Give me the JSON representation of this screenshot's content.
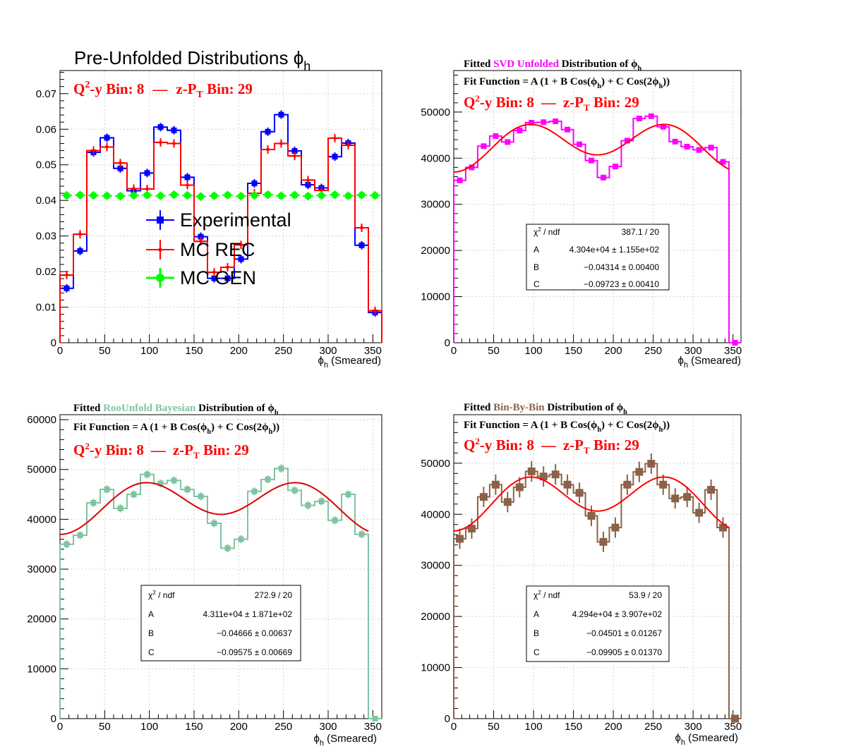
{
  "chart_data": [
    {
      "type": "line",
      "title": "Pre-Unfolded Distributions ϕh",
      "title_main": "Pre-Unfolded Distributions ",
      "title_var": "ϕ",
      "title_sub": "h",
      "bin_label": {
        "q_prefix": "Q",
        "q_sup": "2",
        "q_rest": "-y Bin: 8",
        "dash": "—",
        "z_prefix": "z-P",
        "z_sub": "T",
        "z_rest": " Bin: 29"
      },
      "xlabel": {
        "phi": "ϕ",
        "sub": "h",
        "rest": " (Smeared)"
      },
      "xlim": [
        0,
        360
      ],
      "ylim": [
        0,
        0.0765
      ],
      "xticks": [
        0,
        50,
        100,
        150,
        200,
        250,
        300,
        350
      ],
      "yticks": [
        "0",
        "0.01",
        "0.02",
        "0.03",
        "0.04",
        "0.05",
        "0.06",
        "0.07"
      ],
      "ytick_values": [
        0,
        0.01,
        0.02,
        0.03,
        0.04,
        0.05,
        0.06,
        0.07
      ],
      "bin_edges": [
        0,
        15,
        30,
        45,
        60,
        75,
        90,
        105,
        120,
        135,
        150,
        165,
        180,
        195,
        210,
        225,
        240,
        255,
        270,
        285,
        300,
        315,
        330,
        345,
        360
      ],
      "series": [
        {
          "name": "Experimental",
          "color": "#0000ff",
          "marker": "square",
          "values": [
            0.0153,
            0.0258,
            0.0535,
            0.0576,
            0.049,
            0.0427,
            0.0477,
            0.0606,
            0.0597,
            0.0465,
            0.0298,
            0.0181,
            0.0181,
            0.0235,
            0.0448,
            0.0593,
            0.0641,
            0.0539,
            0.0444,
            0.0435,
            0.0523,
            0.0561,
            0.0274,
            0.0085
          ]
        },
        {
          "name": "MC REC",
          "color": "#ff0000",
          "marker": "star",
          "values": [
            0.019,
            0.0305,
            0.054,
            0.055,
            0.0505,
            0.0433,
            0.0432,
            0.0563,
            0.056,
            0.0443,
            0.0285,
            0.0198,
            0.0212,
            0.0275,
            0.042,
            0.0543,
            0.056,
            0.0525,
            0.0457,
            0.0428,
            0.0575,
            0.0555,
            0.0323,
            0.009
          ]
        },
        {
          "name": "MC GEN",
          "color": "#00ff00",
          "marker": "circle",
          "values": [
            0.0414,
            0.0415,
            0.0414,
            0.0413,
            0.0412,
            0.0414,
            0.0415,
            0.0413,
            0.0416,
            0.0414,
            0.0411,
            0.0413,
            0.0415,
            0.0412,
            0.0414,
            0.0416,
            0.0413,
            0.0415,
            0.0412,
            0.0414,
            0.0416,
            0.0413,
            0.0415,
            0.0414
          ]
        }
      ]
    },
    {
      "type": "line",
      "title_parts": [
        "Fitted ",
        "SVD Unfolded",
        " Distribution of  ϕ",
        "h"
      ],
      "method_color": "#ff00ff",
      "fit_function": {
        "a": "Fit Function = A (1 + B Cos(ϕ",
        "b": ") + C Cos(2ϕ",
        "c": "))",
        "sub": "h"
      },
      "bin_label": {
        "q_prefix": "Q",
        "q_sup": "2",
        "q_rest": "-y Bin: 8",
        "dash": "—",
        "z_prefix": "z-P",
        "z_sub": "T",
        "z_rest": " Bin: 29"
      },
      "xlabel": {
        "phi": "ϕ",
        "sub": "h",
        "rest": " (Smeared)"
      },
      "xlim": [
        0,
        360
      ],
      "ylim": [
        0,
        59000
      ],
      "xticks": [
        0,
        50,
        100,
        150,
        200,
        250,
        300,
        350
      ],
      "yticks": [
        "0",
        "10000",
        "20000",
        "30000",
        "40000",
        "50000"
      ],
      "ytick_values": [
        0,
        10000,
        20000,
        30000,
        40000,
        50000
      ],
      "bin_edges": [
        0,
        15,
        30,
        45,
        60,
        75,
        90,
        105,
        120,
        135,
        150,
        165,
        180,
        195,
        210,
        225,
        240,
        255,
        270,
        285,
        300,
        315,
        330,
        345,
        360
      ],
      "series": [
        {
          "name": "SVD Unfolded",
          "color": "#ff00ff",
          "marker": "square",
          "values": [
            35200,
            38000,
            42600,
            44800,
            43500,
            46000,
            47700,
            47800,
            48000,
            46200,
            43000,
            39500,
            35800,
            38200,
            43800,
            48600,
            49100,
            46800,
            43600,
            42500,
            41800,
            42300,
            39200,
            0
          ],
          "errors": [
            0,
            0,
            0,
            0,
            0,
            0,
            0,
            0,
            0,
            0,
            0,
            0,
            0,
            0,
            0,
            0,
            0,
            0,
            0,
            0,
            0,
            0,
            0,
            0
          ]
        }
      ],
      "fit": {
        "A": 43040,
        "B": -0.04314,
        "C": -0.09723,
        "color": "#ff0000"
      },
      "stats": {
        "chi2_label": "χ",
        "chi2_sup": "2",
        "chi2_rest": " / ndf",
        "chi2": "387.1 / 20",
        "A": "4.304e+04  ± 1.155e+02",
        "B": "−0.04314  ± 0.00400",
        "C": "−0.09723  ± 0.00410"
      }
    },
    {
      "type": "line",
      "title_parts": [
        "Fitted  ",
        "RooUnfold Bayesian",
        " Distribution of  ϕ",
        "h"
      ],
      "method_color": "#7fc4a0",
      "fit_function": {
        "a": "Fit Function = A (1 + B Cos(ϕ",
        "b": ") + C Cos(2ϕ",
        "c": "))",
        "sub": "h"
      },
      "bin_label": {
        "q_prefix": "Q",
        "q_sup": "2",
        "q_rest": "-y Bin: 8",
        "dash": "—",
        "z_prefix": "z-P",
        "z_sub": "T",
        "z_rest": " Bin: 29"
      },
      "xlabel": {
        "phi": "ϕ",
        "sub": "h",
        "rest": " (Smeared)"
      },
      "xlim": [
        0,
        360
      ],
      "ylim": [
        0,
        61000
      ],
      "xticks": [
        0,
        50,
        100,
        150,
        200,
        250,
        300,
        350
      ],
      "yticks": [
        "0",
        "10000",
        "20000",
        "30000",
        "40000",
        "50000",
        "60000"
      ],
      "ytick_values": [
        0,
        10000,
        20000,
        30000,
        40000,
        50000,
        60000
      ],
      "bin_edges": [
        0,
        15,
        30,
        45,
        60,
        75,
        90,
        105,
        120,
        135,
        150,
        165,
        180,
        195,
        210,
        225,
        240,
        255,
        270,
        285,
        300,
        315,
        330,
        345,
        360
      ],
      "series": [
        {
          "name": "RooUnfold Bayesian",
          "color": "#7fc4a0",
          "marker": "square",
          "values": [
            35000,
            36800,
            43300,
            46000,
            42200,
            45000,
            49000,
            47200,
            47800,
            46000,
            44600,
            39200,
            34200,
            36000,
            45600,
            48000,
            50200,
            45800,
            42800,
            43600,
            39800,
            45000,
            37000,
            0
          ],
          "errors": [
            800,
            800,
            800,
            800,
            800,
            800,
            800,
            800,
            800,
            800,
            800,
            800,
            800,
            800,
            800,
            800,
            800,
            800,
            800,
            800,
            800,
            800,
            800,
            0
          ]
        }
      ],
      "fit": {
        "A": 43110,
        "B": -0.04666,
        "C": -0.09575,
        "color": "#dd0000"
      },
      "stats": {
        "chi2_label": "χ",
        "chi2_sup": "2",
        "chi2_rest": " / ndf",
        "chi2": "272.9 / 20",
        "A": "4.311e+04 ± 1.871e+02",
        "B": "−0.04666 ± 0.00637",
        "C": "−0.09575 ± 0.00669"
      }
    },
    {
      "type": "line",
      "title_parts": [
        "Fitted  ",
        "Bin-By-Bin",
        " Distribution of  ϕ",
        "h"
      ],
      "method_color": "#8b6248",
      "fit_function": {
        "a": "Fit Function = A (1 + B Cos(ϕ",
        "b": ") + C Cos(2ϕ",
        "c": "))",
        "sub": "h"
      },
      "bin_label": {
        "q_prefix": "Q",
        "q_sup": "2",
        "q_rest": "-y Bin: 8",
        "dash": "—",
        "z_prefix": "z-P",
        "z_sub": "T",
        "z_rest": " Bin: 29"
      },
      "xlabel": {
        "phi": "ϕ",
        "sub": "h",
        "rest": " (Smeared)"
      },
      "xlim": [
        0,
        360
      ],
      "ylim": [
        0,
        59500
      ],
      "xticks": [
        0,
        50,
        100,
        150,
        200,
        250,
        300,
        350
      ],
      "yticks": [
        "0",
        "10000",
        "20000",
        "30000",
        "40000",
        "50000"
      ],
      "ytick_values": [
        0,
        10000,
        20000,
        30000,
        40000,
        50000
      ],
      "bin_edges": [
        0,
        15,
        30,
        45,
        60,
        75,
        90,
        105,
        120,
        135,
        150,
        165,
        180,
        195,
        210,
        225,
        240,
        255,
        270,
        285,
        300,
        315,
        330,
        345,
        360
      ],
      "series": [
        {
          "name": "Bin-By-Bin",
          "color": "#8b6248",
          "marker": "square",
          "values": [
            35200,
            37200,
            43400,
            45800,
            42400,
            45300,
            48400,
            47400,
            47800,
            45800,
            44200,
            39700,
            34600,
            37400,
            45800,
            48300,
            49900,
            45800,
            43100,
            43400,
            40300,
            44800,
            37400,
            0
          ],
          "errors": [
            2000,
            2000,
            2000,
            2000,
            2000,
            2000,
            2000,
            2000,
            2000,
            2000,
            2000,
            2000,
            2000,
            2000,
            2000,
            2000,
            2000,
            2000,
            2000,
            2000,
            2000,
            2000,
            2000,
            0
          ]
        }
      ],
      "fit": {
        "A": 42940,
        "B": -0.04501,
        "C": -0.09905,
        "color": "#ff0000"
      },
      "stats": {
        "chi2_label": "χ",
        "chi2_sup": "2",
        "chi2_rest": " / ndf",
        "chi2": "53.9 / 20",
        "A": "4.294e+04 ± 3.907e+02",
        "B": "−0.04501 ± 0.01267",
        "C": "−0.09905 ± 0.01370"
      }
    }
  ]
}
